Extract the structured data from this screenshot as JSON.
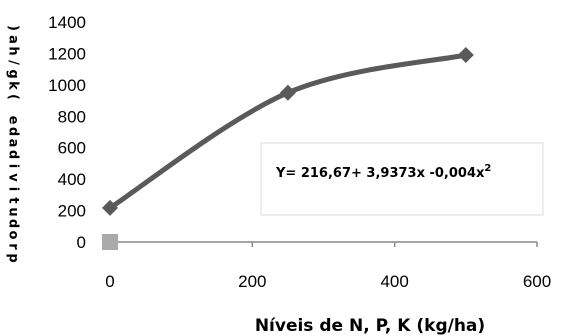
{
  "chart_data": {
    "type": "line",
    "title": "",
    "xlabel": "Níveis de N, P, K (kg/ha)",
    "ylabel": "produtividade (kg/ha)",
    "xlim": [
      0,
      600
    ],
    "ylim": [
      0,
      1400
    ],
    "x_ticks": [
      0,
      200,
      400,
      600
    ],
    "y_ticks": [
      0,
      200,
      400,
      600,
      800,
      1000,
      1200,
      1400
    ],
    "grid": false,
    "legend": "none",
    "series": [
      {
        "points": [
          {
            "x": 0,
            "y": 217
          },
          {
            "x": 250,
            "y": 950
          },
          {
            "x": 500,
            "y": 1190
          }
        ],
        "color": "#5a5a5a",
        "marker": "diamond"
      },
      {
        "points": [
          {
            "x": 0,
            "y": 0
          }
        ],
        "color": "#aaaaaa",
        "marker": "square"
      }
    ],
    "annotation": {
      "text": "Y= 216,67+ 3,9373x -0,004x",
      "superscript": "2"
    }
  }
}
